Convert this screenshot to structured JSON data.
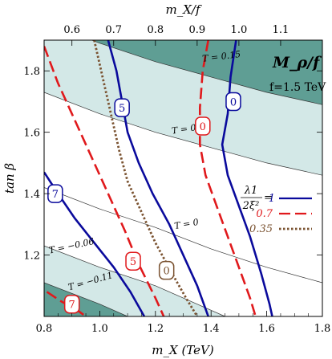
{
  "chart_data": {
    "type": "contour",
    "title": "M_ρ/f",
    "subtitle": "f=1.5 TeV",
    "xlabel": "m_X (TeV)",
    "ylabel": "tan β",
    "top_xlabel": "m_X/f",
    "xlim": [
      0.8,
      1.8
    ],
    "ylim": [
      1.0,
      1.9
    ],
    "x_ticks": [
      "0.8",
      "1.0",
      "1.2",
      "1.4",
      "1.6",
      "1.8"
    ],
    "y_ticks": [
      "1.2",
      "1.4",
      "1.6",
      "1.8"
    ],
    "top_ticks": [
      "0.6",
      "0.7",
      "0.8",
      "0.9",
      "1.0",
      "1.1"
    ],
    "colors": {
      "dark_band": "#5f9e94",
      "light_band": "#d3e8e7",
      "blue": "#0a0a9c",
      "red": "#e0191c",
      "brown": "#7a5230"
    },
    "T_lines": [
      {
        "label": "T = 0.15",
        "points": [
          [
            0.8,
            1.96
          ],
          [
            1.0,
            1.89
          ],
          [
            1.2,
            1.83
          ],
          [
            1.4,
            1.78
          ],
          [
            1.6,
            1.73
          ],
          [
            1.8,
            1.69
          ]
        ]
      },
      {
        "label": "T = 0.1",
        "points": [
          [
            0.8,
            1.73
          ],
          [
            1.0,
            1.66
          ],
          [
            1.2,
            1.6
          ],
          [
            1.4,
            1.55
          ],
          [
            1.6,
            1.5
          ],
          [
            1.8,
            1.46
          ]
        ]
      },
      {
        "label": "T = 0",
        "points": [
          [
            0.8,
            1.42
          ],
          [
            1.0,
            1.35
          ],
          [
            1.2,
            1.29
          ],
          [
            1.4,
            1.22
          ],
          [
            1.6,
            1.16
          ],
          [
            1.8,
            1.11
          ]
        ]
      },
      {
        "label": "T = −0.06",
        "points": [
          [
            0.8,
            1.23
          ],
          [
            1.0,
            1.16
          ],
          [
            1.2,
            1.1
          ],
          [
            1.35,
            1.04
          ],
          [
            1.45,
            1.0
          ]
        ]
      },
      {
        "label": "T = −0.11",
        "points": [
          [
            0.8,
            1.11
          ],
          [
            1.0,
            1.04
          ],
          [
            1.1,
            1.0
          ]
        ]
      }
    ],
    "contours": [
      {
        "series": "1",
        "level": "0",
        "points": [
          [
            1.49,
            1.9
          ],
          [
            1.47,
            1.78
          ],
          [
            1.46,
            1.66
          ],
          [
            1.44,
            1.56
          ],
          [
            1.46,
            1.46
          ],
          [
            1.5,
            1.36
          ],
          [
            1.54,
            1.26
          ],
          [
            1.58,
            1.14
          ],
          [
            1.61,
            1.04
          ],
          [
            1.62,
            1.0
          ]
        ]
      },
      {
        "series": "1",
        "level": "5",
        "points": [
          [
            1.03,
            1.9
          ],
          [
            1.06,
            1.8
          ],
          [
            1.08,
            1.7
          ],
          [
            1.1,
            1.6
          ],
          [
            1.14,
            1.5
          ],
          [
            1.19,
            1.4
          ],
          [
            1.25,
            1.3
          ],
          [
            1.3,
            1.2
          ],
          [
            1.35,
            1.1
          ],
          [
            1.39,
            1.0
          ]
        ]
      },
      {
        "series": "1",
        "level": "7",
        "points": [
          [
            0.8,
            1.47
          ],
          [
            0.85,
            1.4
          ],
          [
            0.91,
            1.32
          ],
          [
            0.98,
            1.24
          ],
          [
            1.05,
            1.16
          ],
          [
            1.11,
            1.08
          ],
          [
            1.16,
            1.0
          ]
        ]
      },
      {
        "series": "0.7",
        "level": "0",
        "points": [
          [
            1.39,
            1.9
          ],
          [
            1.37,
            1.8
          ],
          [
            1.36,
            1.68
          ],
          [
            1.36,
            1.56
          ],
          [
            1.38,
            1.46
          ],
          [
            1.42,
            1.36
          ],
          [
            1.46,
            1.26
          ],
          [
            1.5,
            1.16
          ],
          [
            1.54,
            1.06
          ],
          [
            1.56,
            1.0
          ]
        ]
      },
      {
        "series": "0.7",
        "level": "5",
        "points": [
          [
            0.8,
            1.88
          ],
          [
            0.85,
            1.76
          ],
          [
            0.91,
            1.64
          ],
          [
            0.97,
            1.52
          ],
          [
            1.03,
            1.4
          ],
          [
            1.09,
            1.28
          ],
          [
            1.14,
            1.17
          ],
          [
            1.2,
            1.06
          ],
          [
            1.23,
            1.0
          ]
        ]
      },
      {
        "series": "0.7",
        "level": "7",
        "points": [
          [
            0.81,
            1.08
          ],
          [
            0.86,
            1.05
          ],
          [
            0.92,
            1.02
          ],
          [
            0.95,
            1.0
          ]
        ]
      },
      {
        "series": "0.35",
        "level": "0",
        "points": [
          [
            0.98,
            1.9
          ],
          [
            1.01,
            1.78
          ],
          [
            1.04,
            1.66
          ],
          [
            1.07,
            1.54
          ],
          [
            1.1,
            1.44
          ],
          [
            1.15,
            1.34
          ],
          [
            1.2,
            1.24
          ],
          [
            1.26,
            1.14
          ],
          [
            1.31,
            1.06
          ],
          [
            1.35,
            1.0
          ]
        ]
      }
    ],
    "contour_labels": [
      {
        "text": "0",
        "series": "1",
        "x": 1.48,
        "y": 1.7
      },
      {
        "text": "5",
        "series": "1",
        "x": 1.08,
        "y": 1.68
      },
      {
        "text": "7",
        "series": "1",
        "x": 0.84,
        "y": 1.4
      },
      {
        "text": "0",
        "series": "0.7",
        "x": 1.37,
        "y": 1.62
      },
      {
        "text": "5",
        "series": "0.7",
        "x": 1.12,
        "y": 1.18
      },
      {
        "text": "0",
        "series": "0.35",
        "x": 1.24,
        "y": 1.15
      },
      {
        "text": "7",
        "series": "0.7",
        "x": 0.9,
        "y": 1.04
      }
    ],
    "legend": {
      "placement": "right",
      "heading_num": "λ1",
      "heading_den": "2ξ²",
      "entries": [
        {
          "value": "1",
          "color": "#0a0a9c",
          "style": "solid"
        },
        {
          "value": "0.7",
          "color": "#e0191c",
          "style": "dashed"
        },
        {
          "value": "0.35",
          "color": "#7a5230",
          "style": "dotted"
        }
      ]
    }
  }
}
